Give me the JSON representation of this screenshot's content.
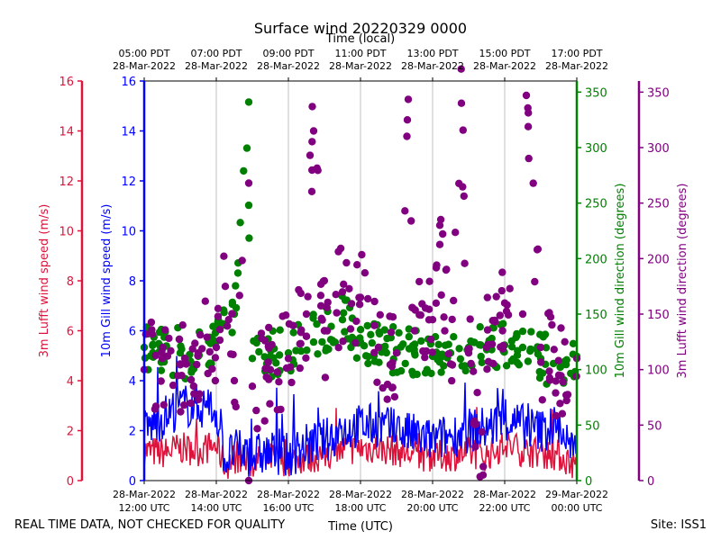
{
  "chart_data": {
    "type": "line+scatter",
    "title": "Surface wind 20220329 0000",
    "top_axis_label": "Time (local)",
    "xlabel": "Time (UTC)",
    "x_range_hours_utc": [
      12,
      24
    ],
    "bottom_ticks": [
      {
        "hour": 12,
        "l1": "28-Mar-2022",
        "l2": "12:00 UTC"
      },
      {
        "hour": 14,
        "l1": "28-Mar-2022",
        "l2": "14:00 UTC"
      },
      {
        "hour": 16,
        "l1": "28-Mar-2022",
        "l2": "16:00 UTC"
      },
      {
        "hour": 18,
        "l1": "28-Mar-2022",
        "l2": "18:00 UTC"
      },
      {
        "hour": 20,
        "l1": "28-Mar-2022",
        "l2": "20:00 UTC"
      },
      {
        "hour": 22,
        "l1": "28-Mar-2022",
        "l2": "22:00 UTC"
      },
      {
        "hour": 24,
        "l1": "29-Mar-2022",
        "l2": "00:00 UTC"
      }
    ],
    "top_ticks": [
      {
        "hour": 12,
        "l1": "05:00 PDT",
        "l2": "28-Mar-2022"
      },
      {
        "hour": 14,
        "l1": "07:00 PDT",
        "l2": "28-Mar-2022"
      },
      {
        "hour": 16,
        "l1": "09:00 PDT",
        "l2": "28-Mar-2022"
      },
      {
        "hour": 18,
        "l1": "11:00 PDT",
        "l2": "28-Mar-2022"
      },
      {
        "hour": 20,
        "l1": "13:00 PDT",
        "l2": "28-Mar-2022"
      },
      {
        "hour": 22,
        "l1": "15:00 PDT",
        "l2": "28-Mar-2022"
      },
      {
        "hour": 24,
        "l1": "17:00 PDT",
        "l2": "28-Mar-2022"
      }
    ],
    "axes": {
      "lufft_speed": {
        "label": "3m Lufft wind speed (m/s)",
        "ylim": [
          0,
          16
        ],
        "ticks": [
          0,
          2,
          4,
          6,
          8,
          10,
          12,
          14,
          16
        ],
        "color": "#dc143c"
      },
      "gill_speed": {
        "label": "10m Gill wind speed (m/s)",
        "ylim": [
          0,
          16
        ],
        "ticks": [
          0,
          2,
          4,
          6,
          8,
          10,
          12,
          14,
          16
        ],
        "color": "#0000ff"
      },
      "gill_dir": {
        "label": "10m Gill wind direction (degrees)",
        "ylim": [
          0,
          360
        ],
        "ticks": [
          0,
          50,
          100,
          150,
          200,
          250,
          300,
          350
        ],
        "color": "#008000"
      },
      "lufft_dir": {
        "label": "3m Lufft wind direction (degrees)",
        "ylim": [
          0,
          360
        ],
        "ticks": [
          0,
          50,
          100,
          150,
          200,
          250,
          300,
          350
        ],
        "color": "#800080"
      }
    },
    "series": [
      {
        "name": "3m Lufft wind speed",
        "axis": "lufft_speed",
        "style": "line",
        "x": [
          12,
          12.5,
          13,
          13.5,
          14,
          14.25,
          14.5,
          15,
          15.5,
          16,
          16.5,
          17,
          17.5,
          18,
          18.5,
          19,
          19.5,
          20,
          20.5,
          21,
          21.5,
          22,
          22.5,
          23,
          23.5,
          24
        ],
        "y": [
          1.2,
          1.1,
          1.3,
          1.2,
          1.4,
          0.6,
          0.9,
          0.7,
          0.9,
          0.8,
          0.9,
          1.0,
          1.2,
          1.3,
          1.3,
          1.2,
          1.0,
          1.0,
          1.0,
          1.1,
          1.0,
          1.4,
          1.2,
          1.1,
          1.0,
          0.6
        ]
      },
      {
        "name": "10m Gill wind speed",
        "axis": "gill_speed",
        "style": "line",
        "x": [
          12,
          12.5,
          13,
          13.5,
          14,
          14.25,
          14.5,
          15,
          15.5,
          16,
          16.5,
          17,
          17.5,
          18,
          18.5,
          19,
          19.5,
          20,
          20.5,
          21,
          21.5,
          22,
          22.5,
          23,
          23.5,
          24
        ],
        "y": [
          2.0,
          2.5,
          3.0,
          3.0,
          2.8,
          0.8,
          1.2,
          1.0,
          1.1,
          1.0,
          1.4,
          1.6,
          2.0,
          2.2,
          2.2,
          2.0,
          1.8,
          1.6,
          1.8,
          2.0,
          2.1,
          2.4,
          2.2,
          2.0,
          2.2,
          0.8
        ]
      },
      {
        "name": "10m Gill wind direction",
        "axis": "gill_dir",
        "style": "scatter",
        "x": [
          12,
          12.5,
          13,
          13.5,
          14,
          14.25,
          14.5,
          14.9,
          14.9,
          15,
          15.5,
          16,
          16.5,
          17,
          17.5,
          18,
          18.5,
          19,
          19.5,
          20,
          20.5,
          21,
          21.5,
          22,
          22.5,
          23,
          23.5,
          24
        ],
        "y": [
          120,
          118,
          115,
          112,
          125,
          140,
          150,
          341,
          248,
          110,
          112,
          115,
          130,
          135,
          145,
          125,
          120,
          118,
          115,
          112,
          115,
          120,
          118,
          122,
          120,
          110,
          108,
          112
        ]
      },
      {
        "name": "3m Lufft wind direction",
        "axis": "lufft_dir",
        "style": "scatter",
        "x": [
          12,
          12.5,
          13,
          13.5,
          14,
          14.25,
          14.5,
          14.9,
          14.9,
          15,
          15.5,
          16,
          16.5,
          16.6,
          16.7,
          17,
          17.5,
          18,
          18.5,
          19,
          19.3,
          19.5,
          20,
          20.2,
          20.5,
          20.8,
          21,
          21.4,
          21.5,
          22,
          22.5,
          22.6,
          23,
          23.5,
          24
        ],
        "y": [
          100,
          110,
          105,
          115,
          120,
          175,
          90,
          268,
          0,
          85,
          100,
          110,
          150,
          293,
          315,
          135,
          170,
          165,
          120,
          115,
          325,
          135,
          145,
          230,
          105,
          340,
          115,
          5,
          120,
          160,
          150,
          347,
          120,
          95,
          110
        ]
      }
    ]
  },
  "footer": {
    "quality_note": "REAL TIME DATA, NOT CHECKED FOR QUALITY",
    "site": "Site: ISS1"
  }
}
